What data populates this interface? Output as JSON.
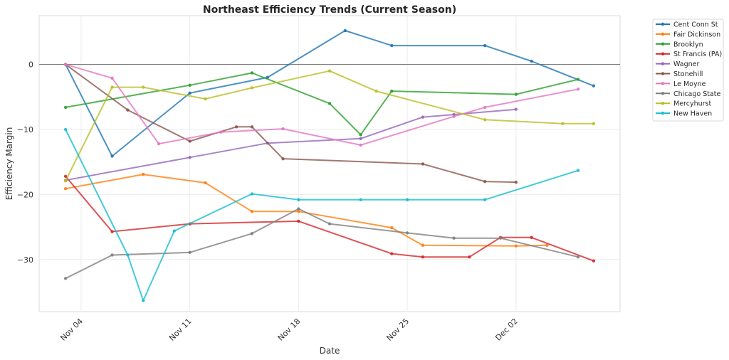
{
  "chart_data": {
    "type": "line",
    "title": "Northeast Efficiency Trends (Current Season)",
    "xlabel": "Date",
    "ylabel": "Efficiency Margin",
    "x_unit": "days since Nov 03",
    "xlim": [
      -1.7,
      35.7
    ],
    "ylim": [
      -38.0,
      7.5
    ],
    "grid": true,
    "reference_line_y": 0,
    "xticks": [
      {
        "value": 1,
        "label": "Nov 04"
      },
      {
        "value": 8,
        "label": "Nov 11"
      },
      {
        "value": 15,
        "label": "Nov 18"
      },
      {
        "value": 22,
        "label": "Nov 25"
      },
      {
        "value": 29,
        "label": "Dec 02"
      }
    ],
    "yticks": [
      {
        "value": 0,
        "label": "0"
      },
      {
        "value": -10,
        "label": "−10"
      },
      {
        "value": -20,
        "label": "−20"
      },
      {
        "value": -30,
        "label": "−30"
      }
    ],
    "legend_position": "outside-top-right",
    "series": [
      {
        "name": "Cent Conn St",
        "color": "#1f77b4",
        "x": [
          0,
          3,
          8,
          13,
          18,
          21,
          27,
          30,
          34
        ],
        "y": [
          0,
          -14.1,
          -4.4,
          -2.0,
          5.2,
          2.9,
          2.9,
          0.5,
          -3.3
        ]
      },
      {
        "name": "Fair Dickinson",
        "color": "#ff7f0e",
        "x": [
          0,
          5,
          9,
          12,
          15,
          21,
          23,
          29,
          31
        ],
        "y": [
          -19.1,
          -16.9,
          -18.2,
          -22.6,
          -22.6,
          -25.1,
          -27.8,
          -27.9,
          -27.8
        ]
      },
      {
        "name": "Brooklyn",
        "color": "#2ca02c",
        "x": [
          0,
          8,
          12,
          17,
          19,
          21,
          29,
          33
        ],
        "y": [
          -6.6,
          -3.2,
          -1.3,
          -6.0,
          -10.8,
          -4.1,
          -4.6,
          -2.3
        ]
      },
      {
        "name": "St Francis (PA)",
        "color": "#d62728",
        "x": [
          0,
          3,
          8,
          15,
          21,
          23,
          26,
          28,
          30,
          34
        ],
        "y": [
          -17.2,
          -25.7,
          -24.5,
          -24.1,
          -29.1,
          -29.6,
          -29.6,
          -26.6,
          -26.6,
          -30.2
        ]
      },
      {
        "name": "Wagner",
        "color": "#9467bd",
        "x": [
          0,
          8,
          13,
          19,
          23,
          25,
          29
        ],
        "y": [
          -17.8,
          -14.3,
          -12.1,
          -11.4,
          -8.1,
          -7.7,
          -6.9
        ]
      },
      {
        "name": "Stonehill",
        "color": "#8c564b",
        "x": [
          0,
          4,
          8,
          11,
          12,
          14,
          23,
          27,
          29
        ],
        "y": [
          0,
          -7.0,
          -11.8,
          -9.6,
          -9.6,
          -14.5,
          -15.3,
          -18.0,
          -18.1
        ]
      },
      {
        "name": "Le Moyne",
        "color": "#e377c2",
        "x": [
          0,
          3,
          6,
          10,
          14,
          19,
          25,
          27,
          33
        ],
        "y": [
          0,
          -2.1,
          -12.2,
          -10.4,
          -9.9,
          -12.4,
          -8.0,
          -6.6,
          -3.8
        ]
      },
      {
        "name": "Chicago State",
        "color": "#7f7f7f",
        "x": [
          0,
          3,
          8,
          12,
          15,
          17,
          22,
          25,
          28,
          33
        ],
        "y": [
          -32.9,
          -29.3,
          -28.9,
          -26.0,
          -22.2,
          -24.5,
          -25.9,
          -26.7,
          -26.7,
          -29.6
        ]
      },
      {
        "name": "Mercyhurst",
        "color": "#bcbd22",
        "x": [
          0,
          3,
          5,
          9,
          12,
          17,
          20,
          27,
          32,
          34
        ],
        "y": [
          -17.9,
          -3.5,
          -3.5,
          -5.3,
          -3.6,
          -1.0,
          -4.1,
          -8.5,
          -9.1,
          -9.1
        ]
      },
      {
        "name": "New Haven",
        "color": "#17becf",
        "x": [
          0,
          4,
          5,
          7,
          12,
          15,
          19,
          22,
          27,
          33
        ],
        "y": [
          -10.0,
          -29.3,
          -36.3,
          -25.6,
          -19.9,
          -20.8,
          -20.8,
          -20.8,
          -20.8,
          -16.3
        ]
      }
    ]
  }
}
